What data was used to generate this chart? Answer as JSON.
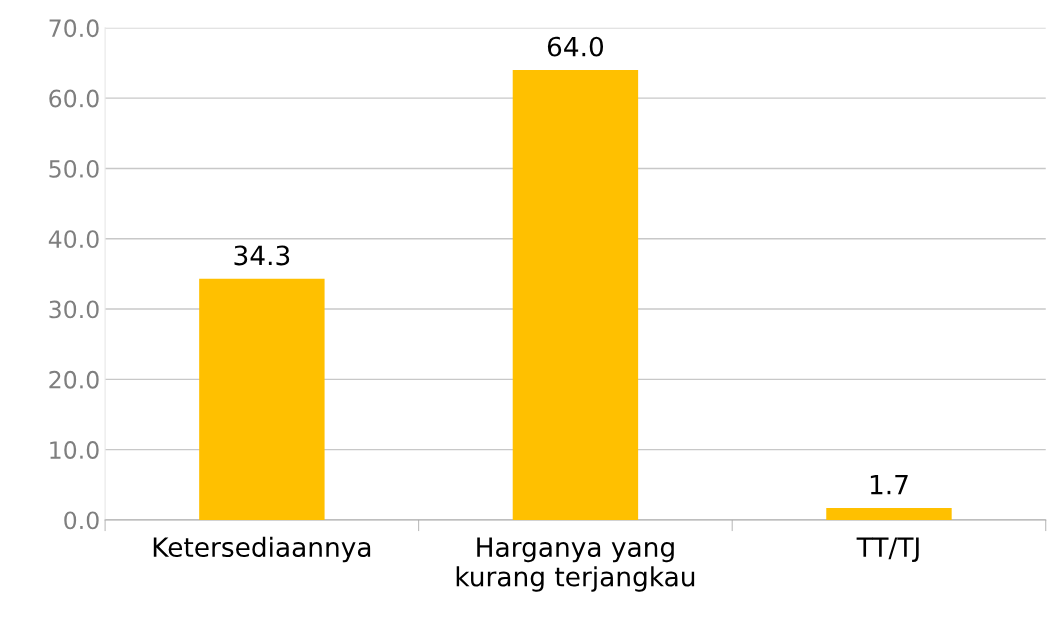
{
  "chart_data": {
    "type": "bar",
    "categories": [
      "Ketersediaannya",
      "Harganya yang\nkurang terjangkau",
      "TT/TJ"
    ],
    "values": [
      34.3,
      64.0,
      1.7
    ],
    "value_labels": [
      "34.3",
      "64.0",
      "1.7"
    ],
    "color": "#ffc000",
    "ylim": [
      0,
      70
    ],
    "yticks": [
      {
        "value": 0,
        "label": "0.0"
      },
      {
        "value": 10,
        "label": "10.0"
      },
      {
        "value": 20,
        "label": "20.0"
      },
      {
        "value": 30,
        "label": "30.0"
      },
      {
        "value": 40,
        "label": "40.0"
      },
      {
        "value": 50,
        "label": "50.0"
      },
      {
        "value": 60,
        "label": "60.0"
      },
      {
        "value": 70,
        "label": "70.0"
      }
    ],
    "grid": "y",
    "legend": false
  }
}
